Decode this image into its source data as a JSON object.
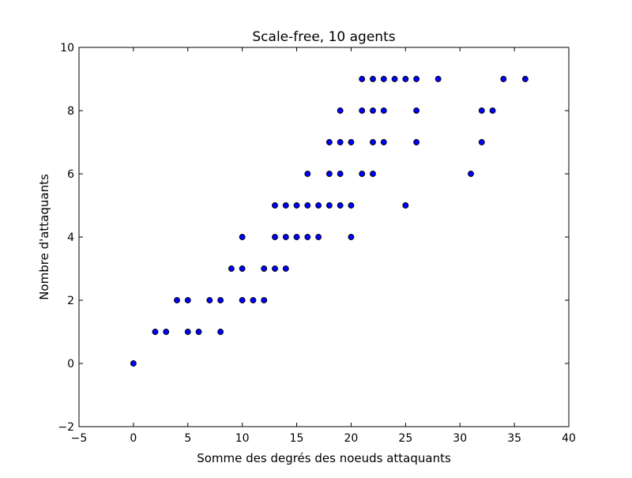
{
  "chart_data": {
    "type": "scatter",
    "title": "Scale-free, 10 agents",
    "xlabel": "Somme des degrés des noeuds attaquants",
    "ylabel": "Nombre d'attaquants",
    "xlim": [
      -5,
      40
    ],
    "ylim": [
      -2,
      10
    ],
    "xticks": [
      -5,
      0,
      5,
      10,
      15,
      20,
      25,
      30,
      35,
      40
    ],
    "yticks": [
      -2,
      0,
      2,
      4,
      6,
      8,
      10
    ],
    "xtick_labels": [
      "−5",
      "0",
      "5",
      "10",
      "15",
      "20",
      "25",
      "30",
      "35",
      "40"
    ],
    "ytick_labels": [
      "−2",
      "0",
      "2",
      "4",
      "6",
      "8",
      "10"
    ],
    "grid": false,
    "legend": null,
    "marker_color": "#0000ff",
    "marker_edge_color": "#000000",
    "series": [
      {
        "points": [
          [
            0,
            0
          ],
          [
            2,
            1
          ],
          [
            3,
            1
          ],
          [
            5,
            1
          ],
          [
            6,
            1
          ],
          [
            8,
            1
          ],
          [
            4,
            2
          ],
          [
            5,
            2
          ],
          [
            7,
            2
          ],
          [
            8,
            2
          ],
          [
            10,
            2
          ],
          [
            11,
            2
          ],
          [
            12,
            2
          ],
          [
            9,
            3
          ],
          [
            10,
            3
          ],
          [
            12,
            3
          ],
          [
            13,
            3
          ],
          [
            14,
            3
          ],
          [
            10,
            4
          ],
          [
            13,
            4
          ],
          [
            14,
            4
          ],
          [
            15,
            4
          ],
          [
            16,
            4
          ],
          [
            17,
            4
          ],
          [
            20,
            4
          ],
          [
            13,
            5
          ],
          [
            14,
            5
          ],
          [
            15,
            5
          ],
          [
            16,
            5
          ],
          [
            17,
            5
          ],
          [
            18,
            5
          ],
          [
            19,
            5
          ],
          [
            20,
            5
          ],
          [
            25,
            5
          ],
          [
            16,
            6
          ],
          [
            18,
            6
          ],
          [
            19,
            6
          ],
          [
            21,
            6
          ],
          [
            22,
            6
          ],
          [
            31,
            6
          ],
          [
            18,
            7
          ],
          [
            19,
            7
          ],
          [
            20,
            7
          ],
          [
            22,
            7
          ],
          [
            23,
            7
          ],
          [
            26,
            7
          ],
          [
            32,
            7
          ],
          [
            19,
            8
          ],
          [
            21,
            8
          ],
          [
            22,
            8
          ],
          [
            23,
            8
          ],
          [
            26,
            8
          ],
          [
            32,
            8
          ],
          [
            33,
            8
          ],
          [
            21,
            9
          ],
          [
            22,
            9
          ],
          [
            23,
            9
          ],
          [
            24,
            9
          ],
          [
            25,
            9
          ],
          [
            26,
            9
          ],
          [
            28,
            9
          ],
          [
            34,
            9
          ],
          [
            36,
            9
          ]
        ]
      }
    ]
  }
}
